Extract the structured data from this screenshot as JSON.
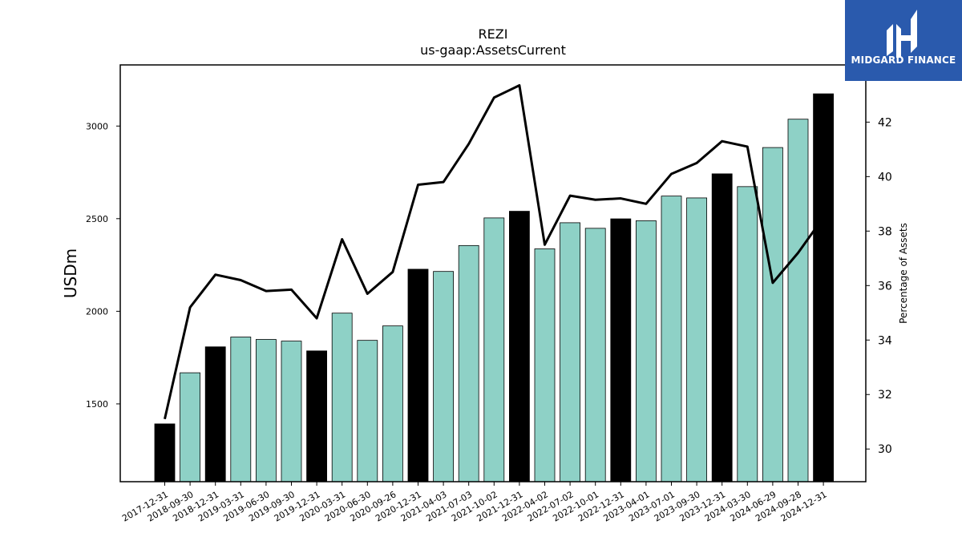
{
  "chart_data": {
    "type": "bar",
    "title": "REZI",
    "subtitle": "us-gaap:AssetsCurrent",
    "ylabel": "USDm",
    "y2label": "Percentage of Assets",
    "ylim": [
      1080,
      3330
    ],
    "y2lim": [
      28.8,
      44.1
    ],
    "yticks": [
      1500,
      2000,
      2500,
      3000
    ],
    "y2ticks": [
      30,
      32,
      34,
      36,
      38,
      40,
      42
    ],
    "categories": [
      "2017-12-31",
      "2018-09-30",
      "2018-12-31",
      "2019-03-31",
      "2019-06-30",
      "2019-09-30",
      "2019-12-31",
      "2020-03-31",
      "2020-06-30",
      "2020-09-26",
      "2020-12-31",
      "2021-04-03",
      "2021-07-03",
      "2021-10-02",
      "2021-12-31",
      "2022-04-02",
      "2022-07-02",
      "2022-10-01",
      "2022-12-31",
      "2023-04-01",
      "2023-07-01",
      "2023-09-30",
      "2023-12-31",
      "2024-03-30",
      "2024-06-29",
      "2024-09-28",
      "2024-12-31"
    ],
    "series": [
      {
        "values": [
          1392,
          1668,
          1808,
          1861,
          1848,
          1839,
          1786,
          1990,
          1843,
          1921,
          2227,
          2215,
          2355,
          2504,
          2540,
          2337,
          2478,
          2448,
          2499,
          2489,
          2622,
          2612,
          2742,
          2673,
          2884,
          3037,
          3174
        ],
        "highlight": [
          true,
          false,
          true,
          false,
          false,
          false,
          true,
          false,
          false,
          false,
          true,
          false,
          false,
          false,
          true,
          false,
          false,
          false,
          true,
          false,
          false,
          false,
          true,
          false,
          false,
          false,
          true
        ]
      },
      {
        "axis": "right",
        "values": [
          31.1,
          35.2,
          36.4,
          36.2,
          35.8,
          35.85,
          34.8,
          37.7,
          35.7,
          36.5,
          39.7,
          39.8,
          41.2,
          42.9,
          43.35,
          37.5,
          39.3,
          39.15,
          39.2,
          39.0,
          40.1,
          40.5,
          41.3,
          41.1,
          36.1,
          37.2,
          38.5
        ]
      }
    ],
    "colors": {
      "bar_default": "#8ed1c6",
      "bar_highlight": "#000000",
      "line": "#000000"
    }
  },
  "logo": {
    "text": "MIDGARD FINANCE"
  }
}
